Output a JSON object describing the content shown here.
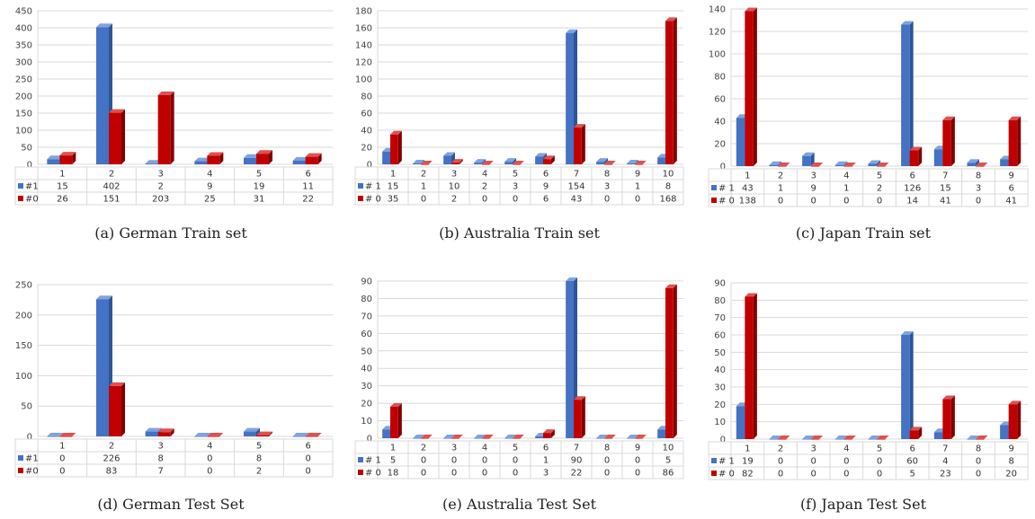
{
  "colors": {
    "s1_front": "#4472C4",
    "s1_top": "#7FA3E0",
    "s1_side": "#2F5597",
    "s0_front": "#C00000",
    "s0_top": "#E05050",
    "s0_side": "#800000",
    "grid": "#D9D9D9"
  },
  "chart_data": [
    {
      "type": "bar",
      "caption": "(a)  German Train set",
      "categories": [
        "1",
        "2",
        "3",
        "4",
        "5",
        "6"
      ],
      "ylim": [
        0,
        450
      ],
      "yticks": [
        0,
        50,
        100,
        150,
        200,
        250,
        300,
        350,
        400,
        450
      ],
      "series": [
        {
          "name": "#1",
          "values": [
            15,
            402,
            2,
            9,
            19,
            11
          ]
        },
        {
          "name": "#0",
          "values": [
            26,
            151,
            203,
            25,
            31,
            22
          ]
        }
      ]
    },
    {
      "type": "bar",
      "caption": "(b)  Australia Train set",
      "categories": [
        "1",
        "2",
        "3",
        "4",
        "5",
        "6",
        "7",
        "8",
        "9",
        "10"
      ],
      "ylim": [
        0,
        180
      ],
      "yticks": [
        0,
        20,
        40,
        60,
        80,
        100,
        120,
        140,
        160,
        180
      ],
      "series": [
        {
          "name": "# 1",
          "values": [
            15,
            1,
            10,
            2,
            3,
            9,
            154,
            3,
            1,
            8
          ]
        },
        {
          "name": "# 0",
          "values": [
            35,
            0,
            2,
            0,
            0,
            6,
            43,
            0,
            0,
            168
          ]
        }
      ]
    },
    {
      "type": "bar",
      "caption": "(c)  Japan Train set",
      "categories": [
        "1",
        "2",
        "3",
        "4",
        "5",
        "6",
        "7",
        "8",
        "9"
      ],
      "ylim": [
        0,
        140
      ],
      "yticks": [
        0,
        20,
        40,
        60,
        80,
        100,
        120,
        140
      ],
      "series": [
        {
          "name": "# 1",
          "values": [
            43,
            1,
            9,
            1,
            2,
            126,
            15,
            3,
            6
          ]
        },
        {
          "name": "# 0",
          "values": [
            138,
            0,
            0,
            0,
            0,
            14,
            41,
            0,
            41
          ]
        }
      ]
    },
    {
      "type": "bar",
      "caption": "(d)  German Test Set",
      "categories": [
        "1",
        "2",
        "3",
        "4",
        "5",
        "6"
      ],
      "ylim": [
        0,
        250
      ],
      "yticks": [
        0,
        50,
        100,
        150,
        200,
        250
      ],
      "series": [
        {
          "name": "#1",
          "values": [
            0,
            226,
            8,
            0,
            8,
            0
          ]
        },
        {
          "name": "#0",
          "values": [
            0,
            83,
            7,
            0,
            2,
            0
          ]
        }
      ]
    },
    {
      "type": "bar",
      "caption": "(e)  Australia Test Set",
      "categories": [
        "1",
        "2",
        "3",
        "4",
        "5",
        "6",
        "7",
        "8",
        "9",
        "10"
      ],
      "ylim": [
        0,
        90
      ],
      "yticks": [
        0,
        10,
        20,
        30,
        40,
        50,
        60,
        70,
        80,
        90
      ],
      "series": [
        {
          "name": "# 1",
          "values": [
            5,
            0,
            0,
            0,
            0,
            1,
            90,
            0,
            0,
            5
          ]
        },
        {
          "name": "# 0",
          "values": [
            18,
            0,
            0,
            0,
            0,
            3,
            22,
            0,
            0,
            86
          ]
        }
      ]
    },
    {
      "type": "bar",
      "caption": "(f)  Japan Test Set",
      "categories": [
        "1",
        "2",
        "3",
        "4",
        "5",
        "6",
        "7",
        "8",
        "9"
      ],
      "ylim": [
        0,
        90
      ],
      "yticks": [
        0,
        10,
        20,
        30,
        40,
        50,
        60,
        70,
        80,
        90
      ],
      "series": [
        {
          "name": "# 1",
          "values": [
            19,
            0,
            0,
            0,
            0,
            60,
            4,
            0,
            8
          ]
        },
        {
          "name": "# 0",
          "values": [
            82,
            0,
            0,
            0,
            0,
            5,
            23,
            0,
            20
          ]
        }
      ]
    }
  ]
}
